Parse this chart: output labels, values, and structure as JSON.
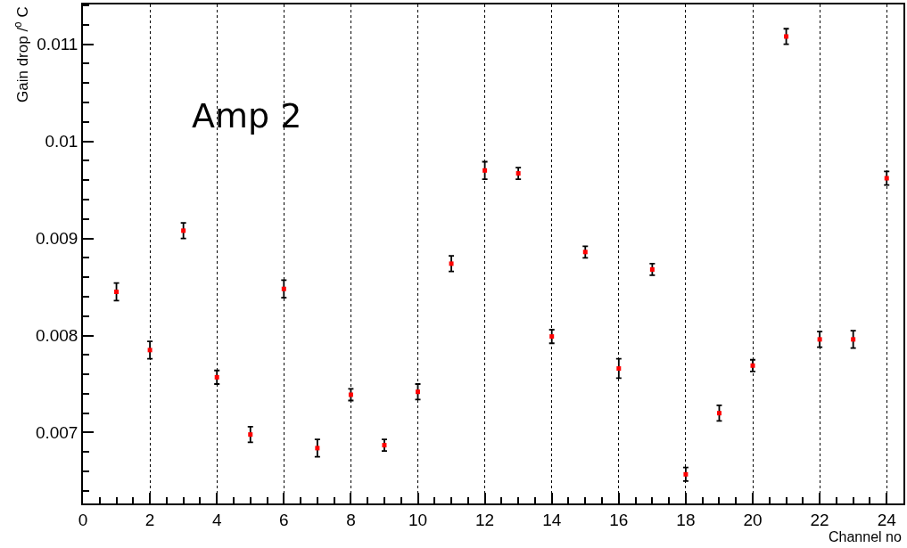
{
  "chart_data": {
    "type": "scatter",
    "xlabel": "Channel no",
    "ylabel": "Gain drop /$^{o}$ C",
    "annotations": [
      "Amp 2"
    ],
    "x": [
      1,
      2,
      3,
      4,
      5,
      6,
      7,
      8,
      9,
      10,
      11,
      12,
      13,
      14,
      15,
      16,
      17,
      18,
      19,
      20,
      21,
      22,
      23,
      24
    ],
    "series": [
      {
        "color": "#ff0000",
        "values": [
          0.00845,
          0.00785,
          0.00908,
          0.00757,
          0.00698,
          0.00848,
          0.00684,
          0.00739,
          0.00687,
          0.00742,
          0.00874,
          0.0097,
          0.00967,
          0.00799,
          0.00886,
          0.00766,
          0.00868,
          0.00657,
          0.0072,
          0.00769,
          0.01108,
          0.00796,
          0.00796,
          0.00962
        ],
        "errors": [
          9e-05,
          9e-05,
          8e-05,
          7e-05,
          8e-05,
          9e-05,
          9e-05,
          6e-05,
          6e-05,
          8e-05,
          8e-05,
          9e-05,
          6e-05,
          7e-05,
          6e-05,
          0.0001,
          6e-05,
          7e-05,
          8e-05,
          6e-05,
          8e-05,
          8e-05,
          9e-05,
          7e-05
        ]
      }
    ],
    "marker": "square",
    "grid": "x",
    "xlim": [
      0,
      24.5
    ],
    "xticks": [
      0,
      2,
      4,
      6,
      8,
      10,
      12,
      14,
      16,
      18,
      20,
      22,
      24
    ],
    "ylim": [
      0.00627,
      0.01141
    ],
    "yticks": [
      0.007,
      0.008,
      0.009,
      0.01,
      0.011
    ]
  }
}
